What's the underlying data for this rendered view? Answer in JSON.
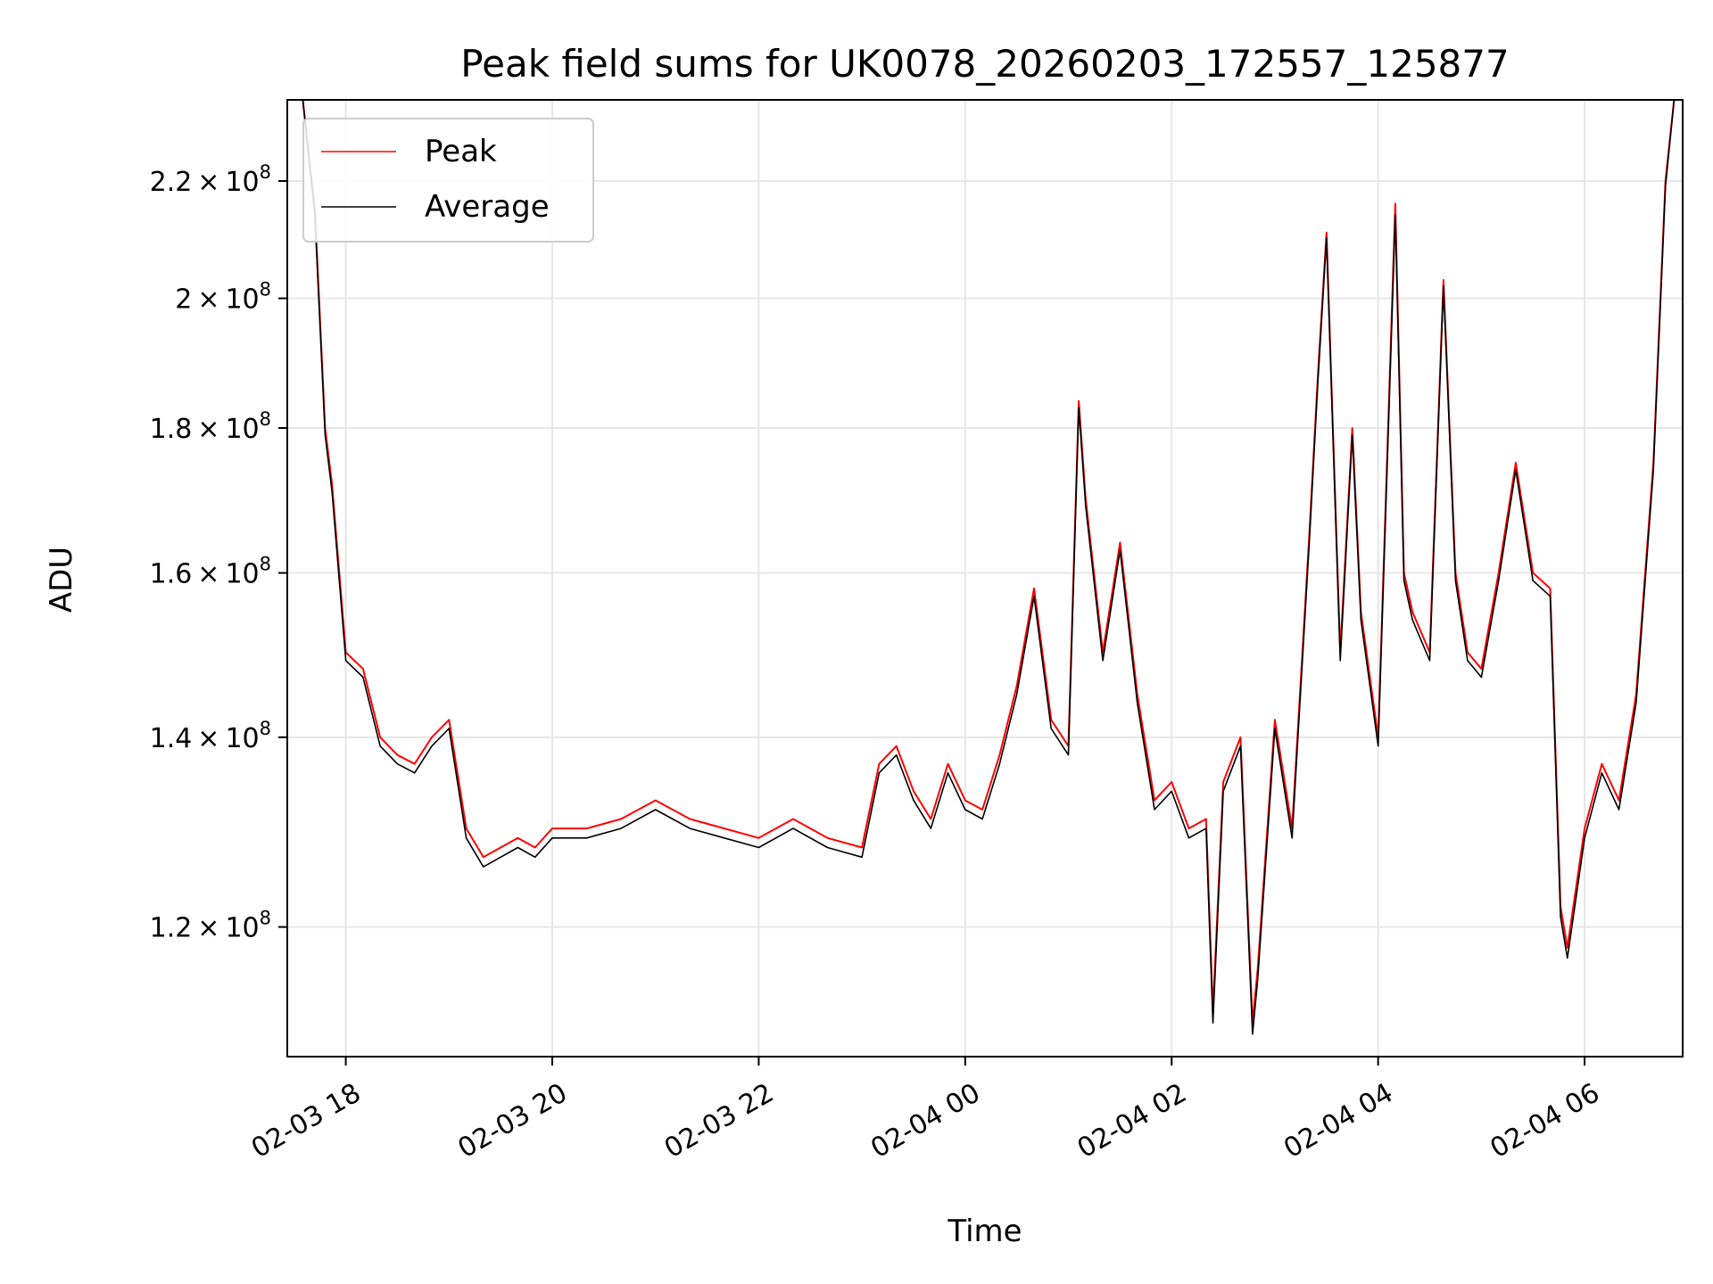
{
  "chart_data": {
    "type": "line",
    "title": "Peak field sums for UK0078_20260203_172557_125877",
    "xlabel": "Time",
    "ylabel": "ADU",
    "x_tick_labels": [
      "02-03 18",
      "02-03 20",
      "02-03 22",
      "02-04 00",
      "02-04 02",
      "02-04 04",
      "02-04 06"
    ],
    "y_tick_labels": [
      {
        "value": 120000000,
        "mant": "1.2",
        "exp": "8"
      },
      {
        "value": 140000000,
        "mant": "1.4",
        "exp": "8"
      },
      {
        "value": 160000000,
        "mant": "1.6",
        "exp": "8"
      },
      {
        "value": 180000000,
        "mant": "1.8",
        "exp": "8"
      },
      {
        "value": 200000000,
        "mant": "2",
        "exp": "8"
      },
      {
        "value": 220000000,
        "mant": "2.2",
        "exp": "8"
      }
    ],
    "y_scale": "log",
    "xlim": [
      "2026-02-03 17:26",
      "2026-02-04 06:57"
    ],
    "ylim": [
      108000000,
      235000000
    ],
    "grid": true,
    "legend_position": "top-left",
    "series": [
      {
        "name": "Peak",
        "color": "#ff0000",
        "x": [
          "2026-02-03 17:35",
          "2026-02-03 17:42",
          "2026-02-03 17:48",
          "2026-02-03 17:52",
          "2026-02-03 18:00",
          "2026-02-03 18:10",
          "2026-02-03 18:20",
          "2026-02-03 18:30",
          "2026-02-03 18:40",
          "2026-02-03 18:50",
          "2026-02-03 19:00",
          "2026-02-03 19:10",
          "2026-02-03 19:20",
          "2026-02-03 19:30",
          "2026-02-03 19:40",
          "2026-02-03 19:50",
          "2026-02-03 20:00",
          "2026-02-03 20:20",
          "2026-02-03 20:40",
          "2026-02-03 21:00",
          "2026-02-03 21:20",
          "2026-02-03 21:40",
          "2026-02-03 22:00",
          "2026-02-03 22:20",
          "2026-02-03 22:40",
          "2026-02-03 23:00",
          "2026-02-03 23:10",
          "2026-02-03 23:20",
          "2026-02-03 23:30",
          "2026-02-03 23:40",
          "2026-02-03 23:50",
          "2026-02-04 00:00",
          "2026-02-04 00:10",
          "2026-02-04 00:20",
          "2026-02-04 00:30",
          "2026-02-04 00:40",
          "2026-02-04 00:50",
          "2026-02-04 01:00",
          "2026-02-04 01:06",
          "2026-02-04 01:10",
          "2026-02-04 01:20",
          "2026-02-04 01:30",
          "2026-02-04 01:40",
          "2026-02-04 01:50",
          "2026-02-04 02:00",
          "2026-02-04 02:10",
          "2026-02-04 02:20",
          "2026-02-04 02:24",
          "2026-02-04 02:30",
          "2026-02-04 02:40",
          "2026-02-04 02:47",
          "2026-02-04 02:50",
          "2026-02-04 03:00",
          "2026-02-04 03:10",
          "2026-02-04 03:20",
          "2026-02-04 03:25",
          "2026-02-04 03:30",
          "2026-02-04 03:38",
          "2026-02-04 03:45",
          "2026-02-04 03:50",
          "2026-02-04 04:00",
          "2026-02-04 04:10",
          "2026-02-04 04:15",
          "2026-02-04 04:20",
          "2026-02-04 04:30",
          "2026-02-04 04:38",
          "2026-02-04 04:45",
          "2026-02-04 04:52",
          "2026-02-04 05:00",
          "2026-02-04 05:10",
          "2026-02-04 05:20",
          "2026-02-04 05:30",
          "2026-02-04 05:40",
          "2026-02-04 05:46",
          "2026-02-04 05:50",
          "2026-02-04 06:00",
          "2026-02-04 06:10",
          "2026-02-04 06:20",
          "2026-02-04 06:30",
          "2026-02-04 06:40",
          "2026-02-04 06:47",
          "2026-02-04 06:52"
        ],
        "values": [
          235000000,
          215000000,
          180000000,
          172000000,
          150000000,
          148000000,
          140000000,
          138000000,
          137000000,
          140000000,
          142000000,
          130000000,
          127000000,
          128000000,
          129000000,
          128000000,
          130000000,
          130000000,
          131000000,
          133000000,
          131000000,
          130000000,
          129000000,
          131000000,
          129000000,
          128000000,
          137000000,
          139000000,
          134000000,
          131000000,
          137000000,
          133000000,
          132000000,
          138000000,
          146000000,
          158000000,
          142000000,
          139000000,
          184000000,
          170000000,
          150000000,
          164000000,
          145000000,
          133000000,
          135000000,
          130000000,
          131000000,
          112000000,
          135000000,
          140000000,
          111000000,
          116000000,
          142000000,
          130000000,
          165000000,
          188000000,
          211000000,
          150000000,
          180000000,
          155000000,
          140000000,
          216000000,
          160000000,
          155000000,
          150000000,
          203000000,
          160000000,
          150000000,
          148000000,
          160000000,
          175000000,
          160000000,
          158000000,
          122000000,
          118000000,
          130000000,
          137000000,
          133000000,
          145000000,
          175000000,
          220000000,
          235000000
        ]
      },
      {
        "name": "Average",
        "color": "#000000",
        "x": [
          "2026-02-03 17:35",
          "2026-02-03 17:42",
          "2026-02-03 17:48",
          "2026-02-03 17:52",
          "2026-02-03 18:00",
          "2026-02-03 18:10",
          "2026-02-03 18:20",
          "2026-02-03 18:30",
          "2026-02-03 18:40",
          "2026-02-03 18:50",
          "2026-02-03 19:00",
          "2026-02-03 19:10",
          "2026-02-03 19:20",
          "2026-02-03 19:30",
          "2026-02-03 19:40",
          "2026-02-03 19:50",
          "2026-02-03 20:00",
          "2026-02-03 20:20",
          "2026-02-03 20:40",
          "2026-02-03 21:00",
          "2026-02-03 21:20",
          "2026-02-03 21:40",
          "2026-02-03 22:00",
          "2026-02-03 22:20",
          "2026-02-03 22:40",
          "2026-02-03 23:00",
          "2026-02-03 23:10",
          "2026-02-03 23:20",
          "2026-02-03 23:30",
          "2026-02-03 23:40",
          "2026-02-03 23:50",
          "2026-02-04 00:00",
          "2026-02-04 00:10",
          "2026-02-04 00:20",
          "2026-02-04 00:30",
          "2026-02-04 00:40",
          "2026-02-04 00:50",
          "2026-02-04 01:00",
          "2026-02-04 01:06",
          "2026-02-04 01:10",
          "2026-02-04 01:20",
          "2026-02-04 01:30",
          "2026-02-04 01:40",
          "2026-02-04 01:50",
          "2026-02-04 02:00",
          "2026-02-04 02:10",
          "2026-02-04 02:20",
          "2026-02-04 02:24",
          "2026-02-04 02:30",
          "2026-02-04 02:40",
          "2026-02-04 02:47",
          "2026-02-04 02:50",
          "2026-02-04 03:00",
          "2026-02-04 03:10",
          "2026-02-04 03:20",
          "2026-02-04 03:25",
          "2026-02-04 03:30",
          "2026-02-04 03:38",
          "2026-02-04 03:45",
          "2026-02-04 03:50",
          "2026-02-04 04:00",
          "2026-02-04 04:10",
          "2026-02-04 04:15",
          "2026-02-04 04:20",
          "2026-02-04 04:30",
          "2026-02-04 04:38",
          "2026-02-04 04:45",
          "2026-02-04 04:52",
          "2026-02-04 05:00",
          "2026-02-04 05:10",
          "2026-02-04 05:20",
          "2026-02-04 05:30",
          "2026-02-04 05:40",
          "2026-02-04 05:46",
          "2026-02-04 05:50",
          "2026-02-04 06:00",
          "2026-02-04 06:10",
          "2026-02-04 06:20",
          "2026-02-04 06:30",
          "2026-02-04 06:40",
          "2026-02-04 06:47",
          "2026-02-04 06:52"
        ],
        "values": [
          235000000,
          214000000,
          179000000,
          171000000,
          149000000,
          147000000,
          139000000,
          137000000,
          136000000,
          139000000,
          141000000,
          129000000,
          126000000,
          127000000,
          128000000,
          127000000,
          129000000,
          129000000,
          130000000,
          132000000,
          130000000,
          129000000,
          128000000,
          130000000,
          128000000,
          127000000,
          136000000,
          138000000,
          133000000,
          130000000,
          136000000,
          132000000,
          131000000,
          137000000,
          145000000,
          157000000,
          141000000,
          138000000,
          183000000,
          169000000,
          149000000,
          163000000,
          144000000,
          132000000,
          134000000,
          129000000,
          130000000,
          111000000,
          134000000,
          139000000,
          110000000,
          115000000,
          141000000,
          129000000,
          164000000,
          187000000,
          210000000,
          149000000,
          179000000,
          154000000,
          139000000,
          214000000,
          159000000,
          154000000,
          149000000,
          202000000,
          159000000,
          149000000,
          147000000,
          159000000,
          174000000,
          159000000,
          157000000,
          121000000,
          117000000,
          129000000,
          136000000,
          132000000,
          144000000,
          174000000,
          219000000,
          235000000
        ]
      }
    ]
  }
}
